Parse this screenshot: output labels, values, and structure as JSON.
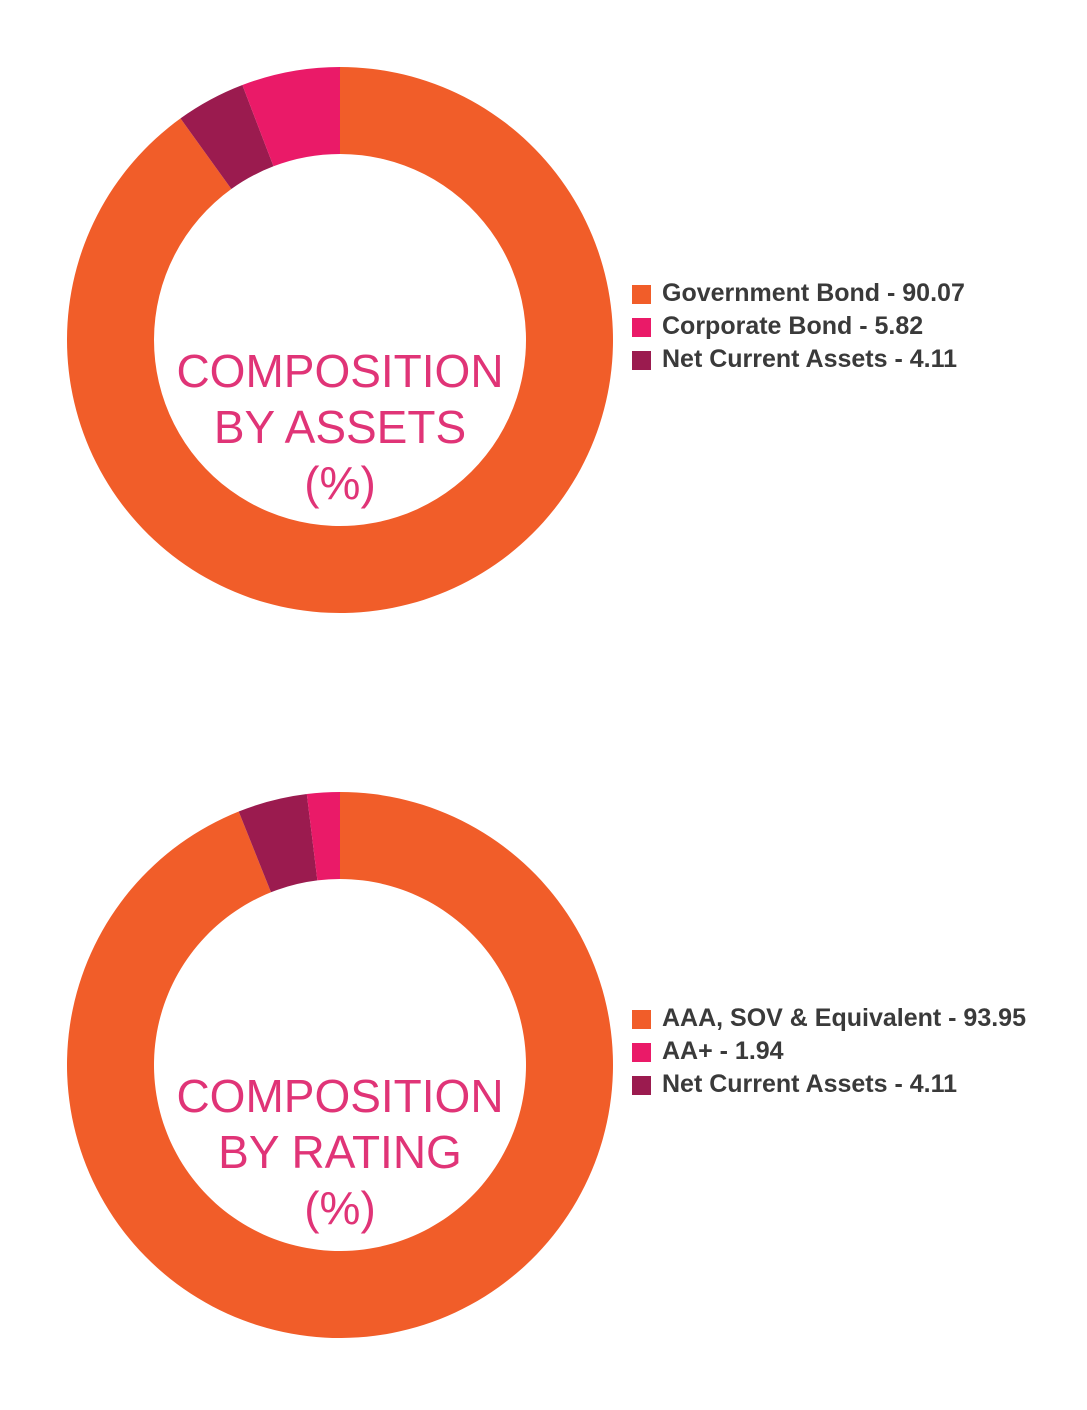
{
  "chart_data": [
    {
      "type": "pie",
      "title_lines": [
        "COMPOSITION",
        "BY ASSETS",
        "(%)"
      ],
      "categories": [
        "Government Bond",
        "Corporate Bond",
        "Net Current Assets"
      ],
      "values": [
        90.07,
        5.82,
        4.11
      ],
      "legend_labels": [
        "Government Bond - 90.07",
        "Corporate Bond - 5.82",
        "Net Current Assets - 4.11"
      ],
      "colors": [
        "#f15d29",
        "#ea1a68",
        "#9b1b4f"
      ],
      "legend_position": "right",
      "donut": true
    },
    {
      "type": "pie",
      "title_lines": [
        "COMPOSITION",
        "BY RATING",
        "(%)"
      ],
      "categories": [
        "AAA, SOV & Equivalent",
        "AA+",
        "Net Current Assets"
      ],
      "values": [
        93.95,
        1.94,
        4.11
      ],
      "legend_labels": [
        "AAA, SOV & Equivalent - 93.95",
        "AA+ - 1.94",
        "Net Current Assets - 4.11"
      ],
      "colors": [
        "#f15d29",
        "#ea1a68",
        "#9b1b4f"
      ],
      "legend_position": "right",
      "donut": true
    }
  ]
}
